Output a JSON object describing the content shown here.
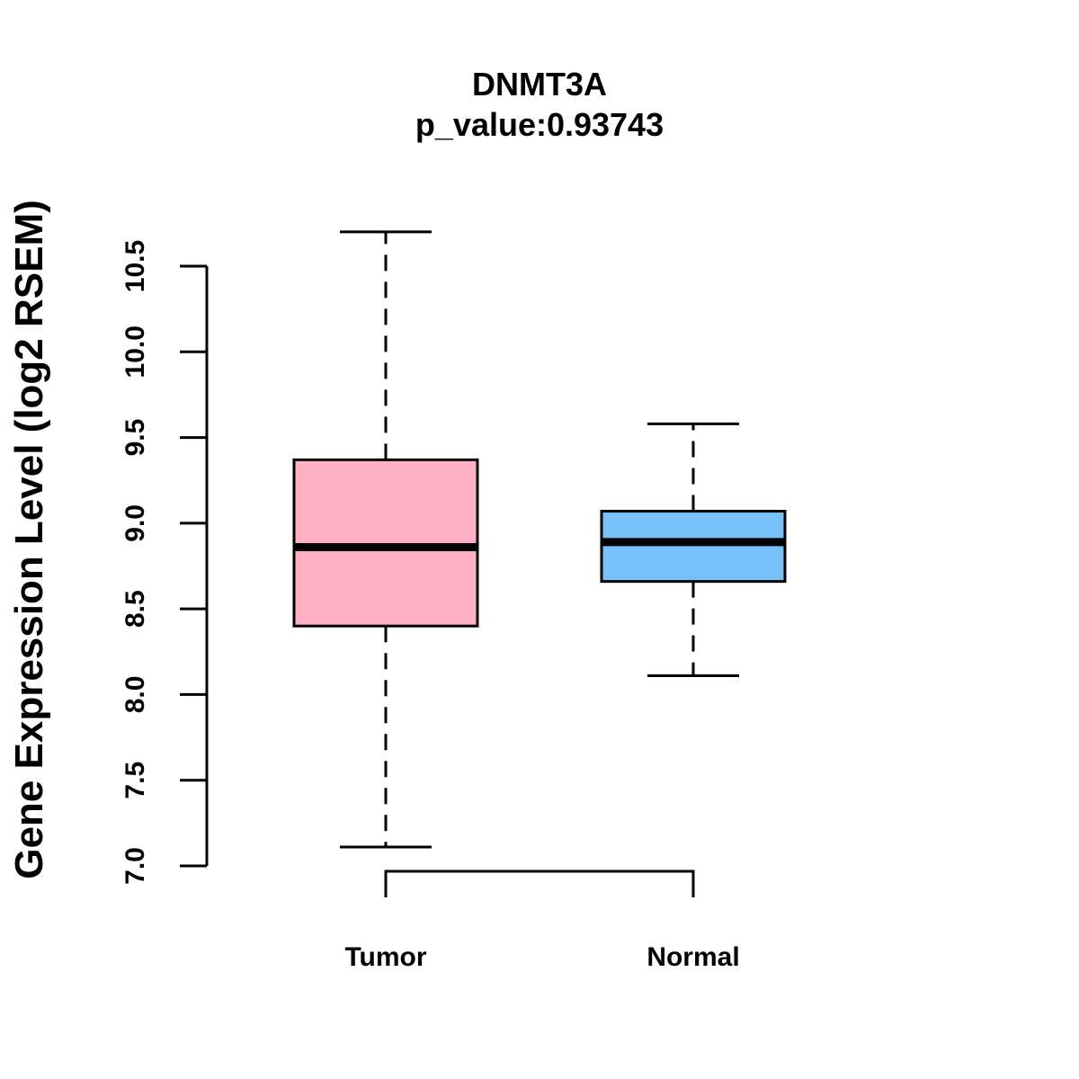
{
  "chart_data": {
    "type": "boxplot",
    "title": "DNMT3A",
    "subtitle": "p_value:0.93743",
    "xlabel": "",
    "ylabel": "Gene Expression Level (log2 RSEM)",
    "ylim": [
      7.0,
      10.5
    ],
    "yticks": [
      "7.0",
      "7.5",
      "8.0",
      "8.5",
      "9.0",
      "9.5",
      "10.0",
      "10.5"
    ],
    "grid": false,
    "categories": [
      "Tumor",
      "Normal"
    ],
    "boxes": [
      {
        "name": "Tumor",
        "whisker_low": 7.11,
        "q1": 8.4,
        "median": 8.86,
        "q3": 9.37,
        "whisker_high": 10.7,
        "color": "#FFB0C4"
      },
      {
        "name": "Normal",
        "whisker_low": 8.11,
        "q1": 8.66,
        "median": 8.89,
        "q3": 9.07,
        "whisker_high": 9.58,
        "color": "#78C0F8"
      }
    ],
    "comparison_bracket": [
      "Tumor",
      "Normal"
    ]
  }
}
